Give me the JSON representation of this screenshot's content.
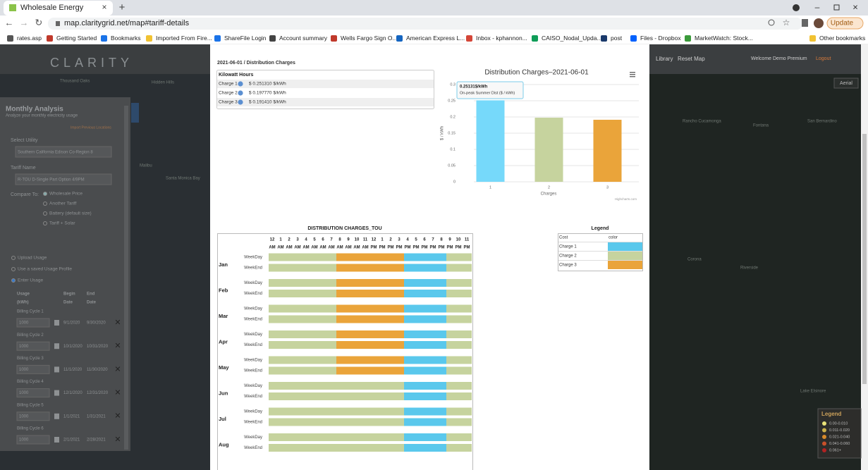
{
  "browser": {
    "tab_title": "Wholesale Energy",
    "url": "map.claritygrid.net/map#tariff-details",
    "update_button": "Update",
    "bookmarks": [
      "rates.asp",
      "Getting Started",
      "Bookmarks",
      "Imported From Fire...",
      "ShareFile Login",
      "Account summary",
      "Wells Fargo Sign O...",
      "American Express L...",
      "Inbox - kphannon...",
      "CAISO_Nodal_Upda...",
      "post",
      "Files - Dropbox",
      "MarketWatch: Stock...",
      "Other bookmarks"
    ]
  },
  "app": {
    "logo": "CLARITY",
    "nav": [
      "Library",
      "Reset Map"
    ],
    "welcome": "Welcome Demo Premium",
    "logout": "Logout",
    "map_toggle": "Aerial",
    "map_labels": [
      "Thousand Oaks",
      "Hidden Hills",
      "Malibu",
      "Santa Monica Bay",
      "Rancho Cucamonga",
      "Fontana",
      "San Bernardino",
      "Corona",
      "Riverside",
      "Lake Elsinore"
    ],
    "map_legend": {
      "title": "Legend",
      "items": [
        "0.00-0.010",
        "0.011-0.020",
        "0.021-0.040",
        "0.041-0.060",
        "0.061+"
      ]
    },
    "panel": {
      "title": "Monthly Analysis",
      "subtitle": "Analyze your monthly electricity usage",
      "import_link": "Import Previous Locations",
      "utility_label": "Select Utility",
      "utility": "Southern California Edison Co-Region 8",
      "tariff_label": "Tariff Name",
      "tariff": "R-TOU D-Single Part Option 4/9PM",
      "compare_label": "Compare To:",
      "compare_options": [
        "Wholesale Price",
        "Another Tariff",
        "Battery (default size)",
        "Tariff + Solar"
      ],
      "usage_options": [
        "Upload Usage",
        "Use a saved Usage Profile",
        "Enter Usage"
      ],
      "columns": [
        [
          "Usage",
          "(kWh)"
        ],
        [
          "Begin",
          "Date"
        ],
        [
          "End",
          "Date"
        ]
      ],
      "billing_cycles": [
        {
          "label": "Billing Cycle 1",
          "usage": "1000",
          "begin": "9/1/2020",
          "end": "9/30/2020"
        },
        {
          "label": "Billing Cycle 2",
          "usage": "1000",
          "begin": "10/1/2020",
          "end": "10/31/2020"
        },
        {
          "label": "Billing Cycle 3",
          "usage": "1000",
          "begin": "11/1/2020",
          "end": "11/30/2020"
        },
        {
          "label": "Billing Cycle 4",
          "usage": "1000",
          "begin": "12/1/2020",
          "end": "12/31/2020"
        },
        {
          "label": "Billing Cycle 5",
          "usage": "1000",
          "begin": "1/1/2021",
          "end": "1/31/2021"
        },
        {
          "label": "Billing Cycle 6",
          "usage": "1000",
          "begin": "2/1/2021",
          "end": "2/28/2021"
        }
      ]
    }
  },
  "modal": {
    "breadcrumb": "2021-06-01 / Distribution Charges",
    "kwh_table": {
      "header": "Kilowatt Hours",
      "rows": [
        [
          "Charge 1",
          "$ 0.251310 $/kWh"
        ],
        [
          "Charge 2",
          "$ 0.197770 $/kWh"
        ],
        [
          "Charge 3",
          "$ 0.191410 $/kWh"
        ]
      ]
    }
  },
  "chart_data": {
    "type": "bar",
    "title": "Distribution Charges–2021-06-01",
    "categories": [
      "1",
      "2",
      "3"
    ],
    "values": [
      0.25131,
      0.19777,
      0.19141
    ],
    "colors": [
      "#76d9fa",
      "#c6d39e",
      "#eaa43a"
    ],
    "ylim": [
      0,
      0.3
    ],
    "yticks": [
      0,
      0.05,
      0.1,
      0.15,
      0.2,
      0.25,
      0.3
    ],
    "y_label": "$ / kWh",
    "x_label": "Charges",
    "credits": "Highcharts.com",
    "tooltip": {
      "value_label": "0.25131$/kWh",
      "series_name": "On-peak Summer Dist ($ / kWh)"
    }
  },
  "tou": {
    "title": "DISTRIBUTION CHARGES_TOU",
    "hours": [
      "12",
      "1",
      "2",
      "3",
      "4",
      "5",
      "6",
      "7",
      "8",
      "9",
      "10",
      "11",
      "12",
      "1",
      "2",
      "3",
      "4",
      "5",
      "6",
      "7",
      "8",
      "9",
      "10",
      "11"
    ],
    "periods": [
      "AM",
      "AM",
      "AM",
      "AM",
      "AM",
      "AM",
      "AM",
      "AM",
      "AM",
      "AM",
      "AM",
      "AM",
      "PM",
      "PM",
      "PM",
      "PM",
      "PM",
      "PM",
      "PM",
      "PM",
      "PM",
      "PM",
      "PM",
      "PM"
    ],
    "day_types": [
      "WeekDay",
      "WeekEnd"
    ],
    "months": [
      {
        "name": "Jan",
        "weekday": [
          2,
          2,
          2,
          2,
          2,
          2,
          2,
          2,
          3,
          3,
          3,
          3,
          3,
          3,
          3,
          3,
          1,
          1,
          1,
          1,
          1,
          2,
          2,
          2
        ],
        "weekend": [
          2,
          2,
          2,
          2,
          2,
          2,
          2,
          2,
          3,
          3,
          3,
          3,
          3,
          3,
          3,
          3,
          1,
          1,
          1,
          1,
          1,
          2,
          2,
          2
        ]
      },
      {
        "name": "Feb",
        "weekday": [
          2,
          2,
          2,
          2,
          2,
          2,
          2,
          2,
          3,
          3,
          3,
          3,
          3,
          3,
          3,
          3,
          1,
          1,
          1,
          1,
          1,
          2,
          2,
          2
        ],
        "weekend": [
          2,
          2,
          2,
          2,
          2,
          2,
          2,
          2,
          3,
          3,
          3,
          3,
          3,
          3,
          3,
          3,
          1,
          1,
          1,
          1,
          1,
          2,
          2,
          2
        ]
      },
      {
        "name": "Mar",
        "weekday": [
          2,
          2,
          2,
          2,
          2,
          2,
          2,
          2,
          3,
          3,
          3,
          3,
          3,
          3,
          3,
          3,
          1,
          1,
          1,
          1,
          1,
          2,
          2,
          2
        ],
        "weekend": [
          2,
          2,
          2,
          2,
          2,
          2,
          2,
          2,
          3,
          3,
          3,
          3,
          3,
          3,
          3,
          3,
          1,
          1,
          1,
          1,
          1,
          2,
          2,
          2
        ]
      },
      {
        "name": "Apr",
        "weekday": [
          2,
          2,
          2,
          2,
          2,
          2,
          2,
          2,
          3,
          3,
          3,
          3,
          3,
          3,
          3,
          3,
          1,
          1,
          1,
          1,
          1,
          2,
          2,
          2
        ],
        "weekend": [
          2,
          2,
          2,
          2,
          2,
          2,
          2,
          2,
          3,
          3,
          3,
          3,
          3,
          3,
          3,
          3,
          1,
          1,
          1,
          1,
          1,
          2,
          2,
          2
        ]
      },
      {
        "name": "May",
        "weekday": [
          2,
          2,
          2,
          2,
          2,
          2,
          2,
          2,
          3,
          3,
          3,
          3,
          3,
          3,
          3,
          3,
          1,
          1,
          1,
          1,
          1,
          2,
          2,
          2
        ],
        "weekend": [
          2,
          2,
          2,
          2,
          2,
          2,
          2,
          2,
          3,
          3,
          3,
          3,
          3,
          3,
          3,
          3,
          1,
          1,
          1,
          1,
          1,
          2,
          2,
          2
        ]
      },
      {
        "name": "Jun",
        "weekday": [
          2,
          2,
          2,
          2,
          2,
          2,
          2,
          2,
          2,
          2,
          2,
          2,
          2,
          2,
          2,
          2,
          1,
          1,
          1,
          1,
          1,
          2,
          2,
          2
        ],
        "weekend": [
          2,
          2,
          2,
          2,
          2,
          2,
          2,
          2,
          2,
          2,
          2,
          2,
          2,
          2,
          2,
          2,
          1,
          1,
          1,
          1,
          1,
          2,
          2,
          2
        ]
      },
      {
        "name": "Jul",
        "weekday": [
          2,
          2,
          2,
          2,
          2,
          2,
          2,
          2,
          2,
          2,
          2,
          2,
          2,
          2,
          2,
          2,
          1,
          1,
          1,
          1,
          1,
          2,
          2,
          2
        ],
        "weekend": [
          2,
          2,
          2,
          2,
          2,
          2,
          2,
          2,
          2,
          2,
          2,
          2,
          2,
          2,
          2,
          2,
          1,
          1,
          1,
          1,
          1,
          2,
          2,
          2
        ]
      },
      {
        "name": "Aug",
        "weekday": [
          2,
          2,
          2,
          2,
          2,
          2,
          2,
          2,
          2,
          2,
          2,
          2,
          2,
          2,
          2,
          2,
          1,
          1,
          1,
          1,
          1,
          2,
          2,
          2
        ],
        "weekend": [
          2,
          2,
          2,
          2,
          2,
          2,
          2,
          2,
          2,
          2,
          2,
          2,
          2,
          2,
          2,
          2,
          1,
          1,
          1,
          1,
          1,
          2,
          2,
          2
        ]
      }
    ]
  },
  "legend": {
    "title": "Legend",
    "headers": [
      "Cost",
      "color"
    ],
    "items": [
      {
        "name": "Charge 1",
        "color": "#5ac8ec"
      },
      {
        "name": "Charge 2",
        "color": "#c6d39e"
      },
      {
        "name": "Charge 3",
        "color": "#eaa43a"
      }
    ]
  }
}
